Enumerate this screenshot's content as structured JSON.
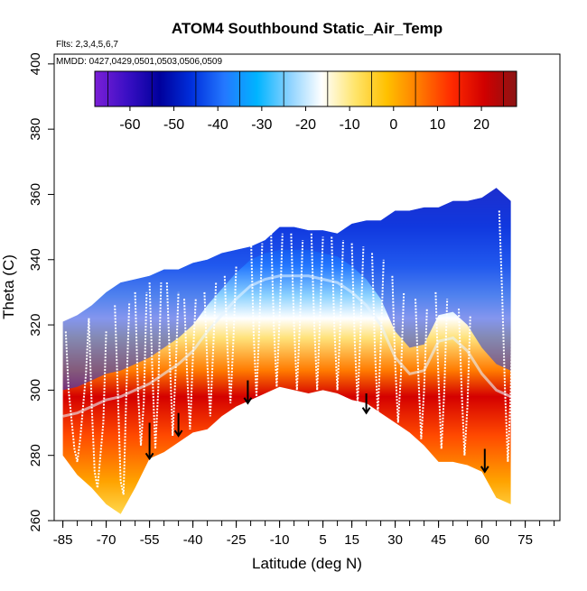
{
  "chart_data": {
    "type": "heatmap",
    "title": "ATOM4 Southbound Static_Air_Temp",
    "notes": {
      "flights": "Flts: 2,3,4,5,6,7",
      "dates": "MMDD: 0427,0429,0501,0503,0506,0509"
    },
    "xlabel": "Latitude (deg N)",
    "ylabel": "Theta (C)",
    "xlim": [
      -88,
      87
    ],
    "ylim": [
      260,
      403
    ],
    "x_ticks": [
      -85,
      -70,
      -55,
      -40,
      -25,
      -10,
      5,
      15,
      30,
      45,
      60,
      75
    ],
    "x_minor_ticks": [
      -85,
      -80,
      -75,
      -70,
      -65,
      -60,
      -55,
      -50,
      -45,
      -40,
      -35,
      -30,
      -25,
      -20,
      -15,
      -10,
      -5,
      0,
      5,
      10,
      15,
      20,
      25,
      30,
      35,
      40,
      45,
      50,
      55,
      60,
      65,
      70,
      75,
      80,
      85
    ],
    "y_ticks": [
      260,
      280,
      300,
      320,
      340,
      360,
      380,
      400
    ],
    "colorbar": {
      "ticks": [
        -60,
        -50,
        -40,
        -30,
        -20,
        -10,
        0,
        10,
        20
      ],
      "range": [
        -68,
        28
      ],
      "colors": [
        "#7b1fd6",
        "#3a0fc4",
        "#00009c",
        "#0030dd",
        "#2478ff",
        "#00b4ff",
        "#8cd2ff",
        "#ffffff",
        "#ffe56e",
        "#ffc000",
        "#ff7a00",
        "#ff2a00",
        "#d10000",
        "#8b1414"
      ]
    },
    "surface_theta_profile": {
      "lat": [
        -85,
        -80,
        -75,
        -70,
        -65,
        -60,
        -55,
        -50,
        -45,
        -40,
        -35,
        -30,
        -25,
        -20,
        -15,
        -10,
        -5,
        0,
        5,
        10,
        15,
        20,
        25,
        30,
        35,
        40,
        45,
        50,
        55,
        60,
        65,
        70
      ],
      "theta": [
        280,
        274,
        270,
        265,
        262,
        270,
        279,
        281,
        284,
        287,
        288,
        292,
        295,
        297,
        299,
        301,
        300,
        299,
        300,
        299,
        297,
        296,
        293,
        290,
        287,
        283,
        278,
        278,
        277,
        275,
        267,
        265
      ]
    },
    "top_theta_profile": {
      "lat": [
        -85,
        -80,
        -75,
        -70,
        -65,
        -60,
        -55,
        -50,
        -45,
        -40,
        -35,
        -30,
        -25,
        -20,
        -15,
        -10,
        -5,
        0,
        5,
        10,
        15,
        20,
        25,
        30,
        35,
        40,
        45,
        50,
        55,
        60,
        65,
        70
      ],
      "theta": [
        321,
        323,
        326,
        330,
        333,
        334,
        335,
        337,
        337,
        339,
        340,
        342,
        343,
        344,
        346,
        350,
        350,
        349,
        349,
        348,
        351,
        352,
        352,
        355,
        355,
        356,
        356,
        358,
        358,
        359,
        362,
        358
      ]
    },
    "tropopause_profile": {
      "lat": [
        -85,
        -80,
        -75,
        -70,
        -65,
        -60,
        -55,
        -50,
        -45,
        -40,
        -35,
        -30,
        -25,
        -20,
        -15,
        -10,
        -5,
        0,
        5,
        10,
        15,
        20,
        25,
        30,
        35,
        40,
        45,
        50,
        55,
        60,
        65,
        70
      ],
      "theta": [
        292,
        293,
        295,
        297,
        298,
        300,
        302,
        305,
        308,
        312,
        318,
        323,
        328,
        332,
        334,
        335,
        335,
        335,
        334,
        333,
        330,
        326,
        320,
        310,
        305,
        306,
        315,
        316,
        312,
        305,
        300,
        298
      ]
    },
    "flight_tracks": [
      {
        "lat": [
          -84,
          -83,
          -81,
          -80,
          -79,
          -77,
          -76
        ],
        "theta": [
          318,
          300,
          282,
          278,
          285,
          305,
          322
        ]
      },
      {
        "lat": [
          -76,
          -75,
          -74,
          -73,
          -71,
          -70
        ],
        "theta": [
          322,
          295,
          275,
          270,
          290,
          318
        ]
      },
      {
        "lat": [
          -67,
          -66,
          -65,
          -64,
          -63,
          -62
        ],
        "theta": [
          326,
          300,
          272,
          268,
          300,
          327
        ]
      },
      {
        "lat": [
          -60,
          -59,
          -58,
          -57,
          -56
        ],
        "theta": [
          330,
          300,
          283,
          296,
          330
        ]
      },
      {
        "lat": [
          -55,
          -54,
          -53,
          -52,
          -51
        ],
        "theta": [
          333,
          305,
          282,
          300,
          333
        ]
      },
      {
        "lat": [
          -49,
          -48,
          -47,
          -46,
          -45
        ],
        "theta": [
          333,
          310,
          286,
          305,
          330
        ]
      },
      {
        "lat": [
          -43,
          -42,
          -41,
          -40,
          -39
        ],
        "theta": [
          328,
          305,
          288,
          310,
          328
        ]
      },
      {
        "lat": [
          -36,
          -35,
          -34,
          -33,
          -32
        ],
        "theta": [
          330,
          308,
          292,
          312,
          333
        ]
      },
      {
        "lat": [
          -29,
          -28,
          -27,
          -26,
          -25
        ],
        "theta": [
          335,
          312,
          296,
          315,
          338
        ]
      },
      {
        "lat": [
          -20,
          -19,
          -18,
          -17,
          -16
        ],
        "theta": [
          350,
          318,
          298,
          320,
          345
        ]
      },
      {
        "lat": [
          -13,
          -12,
          -11,
          -10,
          -9
        ],
        "theta": [
          350,
          320,
          301,
          322,
          348
        ]
      },
      {
        "lat": [
          -6,
          -5,
          -4,
          -3,
          -2
        ],
        "theta": [
          348,
          320,
          300,
          320,
          346
        ]
      },
      {
        "lat": [
          1,
          2,
          3,
          4,
          5
        ],
        "theta": [
          348,
          320,
          300,
          322,
          347
        ]
      },
      {
        "lat": [
          8,
          9,
          10,
          11,
          12
        ],
        "theta": [
          347,
          318,
          300,
          320,
          346
        ]
      },
      {
        "lat": [
          15,
          16,
          17,
          18,
          19
        ],
        "theta": [
          345,
          315,
          296,
          318,
          344
        ]
      },
      {
        "lat": [
          22,
          23,
          24,
          25,
          26
        ],
        "theta": [
          342,
          312,
          293,
          314,
          340
        ]
      },
      {
        "lat": [
          29,
          30,
          31,
          32,
          33
        ],
        "theta": [
          335,
          308,
          290,
          305,
          330
        ]
      },
      {
        "lat": [
          37,
          38,
          39,
          40,
          41
        ],
        "theta": [
          328,
          305,
          285,
          300,
          325
        ]
      },
      {
        "lat": [
          44,
          45,
          46,
          47,
          48
        ],
        "theta": [
          330,
          303,
          282,
          300,
          328
        ]
      },
      {
        "lat": [
          52,
          53,
          54,
          55,
          56
        ],
        "theta": [
          325,
          300,
          280,
          295,
          323
        ]
      },
      {
        "lat": [
          66,
          67,
          68,
          69,
          70,
          71
        ],
        "theta": [
          355,
          330,
          300,
          278,
          300,
          340
        ]
      }
    ],
    "arrows": [
      {
        "lat": -55,
        "theta_top": 290,
        "theta_bottom": 279
      },
      {
        "lat": -45,
        "theta_top": 293,
        "theta_bottom": 286
      },
      {
        "lat": -21,
        "theta_top": 303,
        "theta_bottom": 296
      },
      {
        "lat": 20,
        "theta_top": 299,
        "theta_bottom": 293
      },
      {
        "lat": 61,
        "theta_top": 282,
        "theta_bottom": 275
      }
    ],
    "grid": false,
    "legend": "colorbar top-inside"
  }
}
